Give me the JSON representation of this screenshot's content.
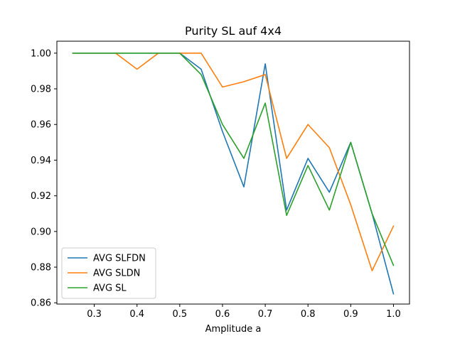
{
  "chart_data": {
    "type": "line",
    "title": "Purity SL auf 4x4",
    "xlabel": "Amplitude a",
    "ylabel": "",
    "xlim": [
      0.2125,
      1.0375
    ],
    "ylim": [
      0.8593,
      1.0067
    ],
    "xticks": [
      0.3,
      0.4,
      0.5,
      0.6,
      0.7,
      0.8,
      0.9,
      1.0
    ],
    "xtick_labels": [
      "0.3",
      "0.4",
      "0.5",
      "0.6",
      "0.7",
      "0.8",
      "0.9",
      "1.0"
    ],
    "yticks": [
      0.86,
      0.88,
      0.9,
      0.92,
      0.94,
      0.96,
      0.98,
      1.0
    ],
    "ytick_labels": [
      "0.86",
      "0.88",
      "0.90",
      "0.92",
      "0.94",
      "0.96",
      "0.98",
      "1.00"
    ],
    "grid": false,
    "legend_position": "lower-left",
    "x": [
      0.25,
      0.3,
      0.35,
      0.4,
      0.45,
      0.5,
      0.55,
      0.6,
      0.65,
      0.7,
      0.75,
      0.8,
      0.85,
      0.9,
      0.95,
      1.0
    ],
    "series": [
      {
        "name": "AVG SLFDN",
        "color": "#1f77b4",
        "values": [
          1.0,
          1.0,
          1.0,
          1.0,
          1.0,
          1.0,
          0.991,
          0.956,
          0.925,
          0.994,
          0.912,
          0.941,
          0.922,
          0.95,
          0.91,
          0.865
        ]
      },
      {
        "name": "AVG SLDN",
        "color": "#ff7f0e",
        "values": [
          1.0,
          1.0,
          1.0,
          0.991,
          1.0,
          1.0,
          1.0,
          0.981,
          0.984,
          0.988,
          0.941,
          0.96,
          0.947,
          0.915,
          0.878,
          0.903
        ]
      },
      {
        "name": "AVG SL",
        "color": "#2ca02c",
        "values": [
          1.0,
          1.0,
          1.0,
          1.0,
          1.0,
          1.0,
          0.988,
          0.96,
          0.941,
          0.972,
          0.909,
          0.937,
          0.912,
          0.95,
          0.91,
          0.881
        ]
      }
    ]
  }
}
